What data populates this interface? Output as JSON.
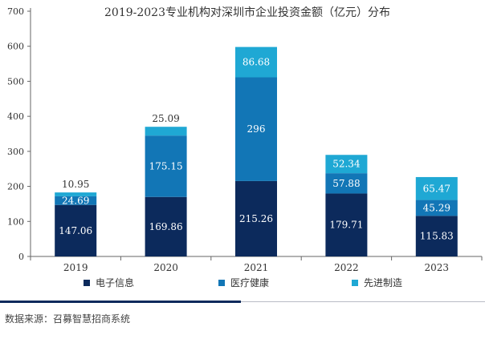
{
  "chart_data": {
    "type": "bar",
    "stacked": true,
    "title": "2019-2023专业机构对深圳市企业投资金额（亿元）分布",
    "categories": [
      "2019",
      "2020",
      "2021",
      "2022",
      "2023"
    ],
    "series": [
      {
        "name": "电子信息",
        "values": [
          147.06,
          169.86,
          215.26,
          179.71,
          115.83
        ],
        "labels": [
          "147.06",
          "169.86",
          "215.26",
          "179.71",
          "115.83"
        ],
        "color": "#0c2a5c",
        "label_color": "#ffffff"
      },
      {
        "name": "医疗健康",
        "values": [
          24.69,
          175.15,
          296,
          57.88,
          45.29
        ],
        "labels": [
          "24.69",
          "175.15",
          "296",
          "57.88",
          "45.29"
        ],
        "color": "#1276b6",
        "label_color": "#ffffff"
      },
      {
        "name": "先进制造",
        "values": [
          10.95,
          25.09,
          86.68,
          52.34,
          65.47
        ],
        "labels": [
          "10.95",
          "25.09",
          "86.68",
          "52.34",
          "65.47"
        ],
        "color": "#1fa8d4",
        "label_color": "#ffffff"
      }
    ],
    "y_ticks": [
      "0",
      "100",
      "200",
      "300",
      "400",
      "500",
      "600",
      "700"
    ],
    "ylim": [
      0,
      700
    ],
    "grid": false,
    "legend_position": "bottom",
    "xlabel": "",
    "ylabel": ""
  },
  "source_text": "数据来源：召募智慧招商系统"
}
